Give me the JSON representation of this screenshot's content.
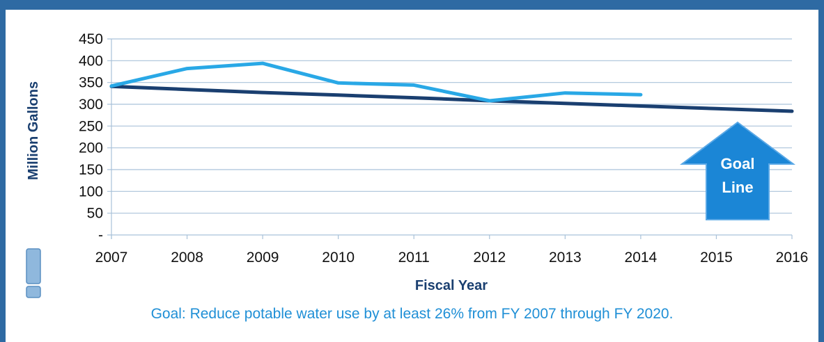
{
  "chart_data": {
    "type": "line",
    "ylabel": "Million Gallons",
    "xlabel": "Fiscal Year",
    "x": [
      2007,
      2008,
      2009,
      2010,
      2011,
      2012,
      2013,
      2014,
      2015,
      2016
    ],
    "x_tick_labels": [
      "2007",
      "2008",
      "2009",
      "2010",
      "2011",
      "2012",
      "2013",
      "2014",
      "2015",
      "2016"
    ],
    "y_tick_labels": [
      "-",
      "50",
      "100",
      "150",
      "200",
      "250",
      "300",
      "350",
      "400",
      "450"
    ],
    "ylim": [
      0,
      450
    ],
    "grid": true,
    "series": [
      {
        "values": [
          342,
          382,
          394,
          349,
          344,
          308,
          326,
          322,
          null,
          null
        ],
        "color": "#29a8e6"
      },
      {
        "values": [
          341,
          334,
          327,
          321,
          315,
          308,
          302,
          296,
          290,
          284
        ],
        "color": "#1a3f70"
      }
    ],
    "annotation": {
      "text_line1": "Goal",
      "text_line2": "Line",
      "color": "#1b86d6"
    }
  },
  "footer": {
    "goal_text": "Goal: Reduce potable water use by at least 26% from FY 2007 through FY 2020."
  },
  "colors": {
    "frame": "#2e6aa3",
    "gridline": "#a9c2d9",
    "icon": "#8fb8dd"
  },
  "icons": {
    "side_icon": "exclamation-icon"
  }
}
